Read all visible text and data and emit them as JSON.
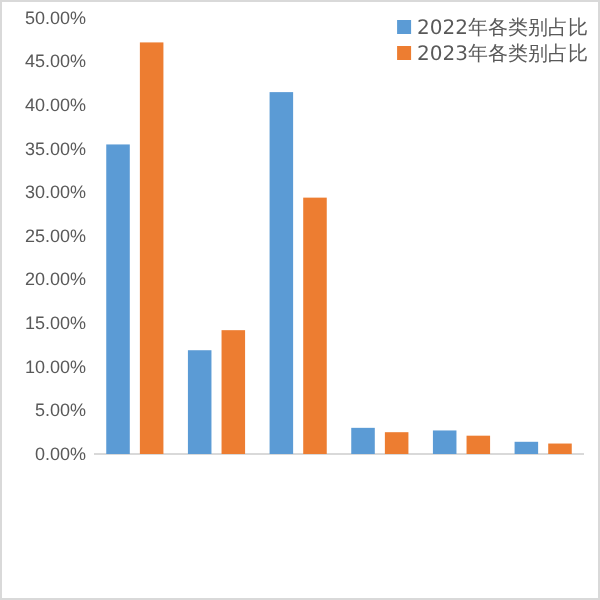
{
  "chart_data": {
    "type": "bar",
    "categories": [
      null,
      null,
      null,
      null,
      null,
      null
    ],
    "series": [
      {
        "name": "2022年各类别占比",
        "color": "#5b9bd5",
        "values": [
          35.5,
          11.9,
          41.5,
          3.0,
          2.7,
          1.4
        ]
      },
      {
        "name": "2023年各类别占比",
        "color": "#ed7d31",
        "values": [
          47.2,
          14.2,
          29.4,
          2.5,
          2.1,
          1.2
        ]
      }
    ],
    "ylim": [
      0,
      50
    ],
    "yticks": [
      {
        "value": 0,
        "label": "0.00%"
      },
      {
        "value": 5,
        "label": "5.00%"
      },
      {
        "value": 10,
        "label": "10.00%"
      },
      {
        "value": 15,
        "label": "15.00%"
      },
      {
        "value": 20,
        "label": "20.00%"
      },
      {
        "value": 25,
        "label": "25.00%"
      },
      {
        "value": 30,
        "label": "30.00%"
      },
      {
        "value": 35,
        "label": "35.00%"
      },
      {
        "value": 40,
        "label": "40.00%"
      },
      {
        "value": 45,
        "label": "45.00%"
      },
      {
        "value": 50,
        "label": "50.00%"
      }
    ],
    "grid": false,
    "legend": "top right"
  }
}
